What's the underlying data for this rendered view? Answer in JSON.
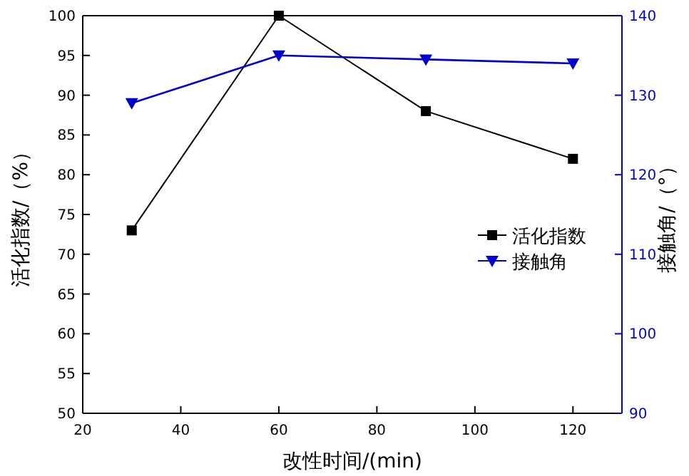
{
  "chart_data": {
    "type": "line",
    "xlabel": "改性时间/(min)",
    "ylabel": "活化指数/（%）",
    "y2label": "接触角/（°）",
    "x": [
      30,
      60,
      90,
      120
    ],
    "xlim": [
      20,
      130
    ],
    "xticks": [
      20,
      40,
      60,
      80,
      100,
      120
    ],
    "ylim": [
      50,
      100
    ],
    "yticks": [
      50,
      55,
      60,
      65,
      70,
      75,
      80,
      85,
      90,
      95,
      100
    ],
    "y2lim": [
      90,
      140
    ],
    "y2ticks": [
      90,
      100,
      110,
      120,
      130,
      140
    ],
    "grid": false,
    "legend": "right",
    "series": [
      {
        "name": "活化指数",
        "color": "#000000",
        "marker": "square",
        "values": [
          73,
          100,
          88,
          82
        ]
      },
      {
        "name": "接触角",
        "color": "#0000cc",
        "marker": "triangle",
        "axis": "y2",
        "values": [
          129,
          135,
          134.5,
          134
        ]
      }
    ]
  }
}
